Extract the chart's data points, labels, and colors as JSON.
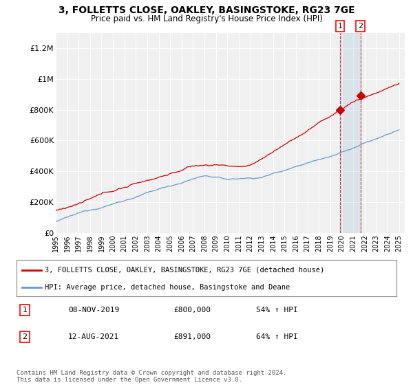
{
  "title": "3, FOLLETTS CLOSE, OAKLEY, BASINGSTOKE, RG23 7GE",
  "subtitle": "Price paid vs. HM Land Registry's House Price Index (HPI)",
  "ylabel_ticks": [
    "£0",
    "£200K",
    "£400K",
    "£600K",
    "£800K",
    "£1M",
    "£1.2M"
  ],
  "ytick_values": [
    0,
    200000,
    400000,
    600000,
    800000,
    1000000,
    1200000
  ],
  "ylim": [
    0,
    1300000
  ],
  "xlim_start": 1995.0,
  "xlim_end": 2025.5,
  "xticks": [
    1995,
    1996,
    1997,
    1998,
    1999,
    2000,
    2001,
    2002,
    2003,
    2004,
    2005,
    2006,
    2007,
    2008,
    2009,
    2010,
    2011,
    2012,
    2013,
    2014,
    2015,
    2016,
    2017,
    2018,
    2019,
    2020,
    2021,
    2022,
    2023,
    2024,
    2025
  ],
  "hpi_color": "#6699cc",
  "price_color": "#cc0000",
  "marker1_date": 2019.85,
  "marker1_price": 800000,
  "marker1_label": "1",
  "marker2_date": 2021.62,
  "marker2_price": 891000,
  "marker2_label": "2",
  "legend_line1": "3, FOLLETTS CLOSE, OAKLEY, BASINGSTOKE, RG23 7GE (detached house)",
  "legend_line2": "HPI: Average price, detached house, Basingstoke and Deane",
  "table_row1": [
    "1",
    "08-NOV-2019",
    "£800,000",
    "54% ↑ HPI"
  ],
  "table_row2": [
    "2",
    "12-AUG-2021",
    "£891,000",
    "64% ↑ HPI"
  ],
  "footer": "Contains HM Land Registry data © Crown copyright and database right 2024.\nThis data is licensed under the Open Government Licence v3.0.",
  "background_color": "#ffffff",
  "plot_bg_color": "#f0f0f0"
}
